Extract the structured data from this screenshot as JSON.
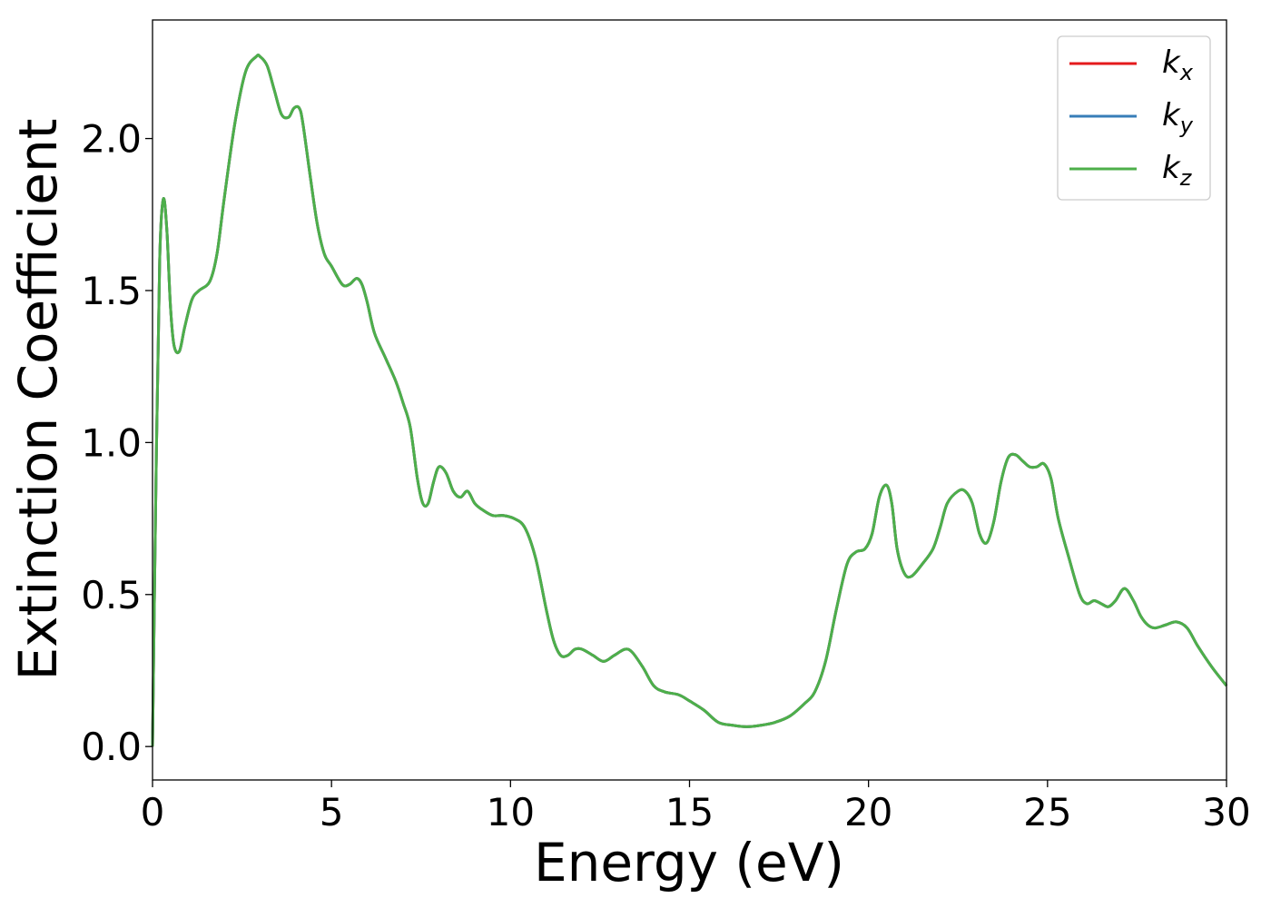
{
  "chart_data": {
    "type": "line",
    "xlabel": "Energy (eV)",
    "ylabel": "Extinction Coefficient",
    "xlim": [
      0,
      30
    ],
    "ylim": [
      -0.11,
      2.39
    ],
    "xticks": [
      0,
      5,
      10,
      15,
      20,
      25,
      30
    ],
    "xtick_labels": [
      "0",
      "5",
      "10",
      "15",
      "20",
      "25",
      "30"
    ],
    "yticks": [
      0.0,
      0.5,
      1.0,
      1.5,
      2.0
    ],
    "ytick_labels": [
      "0.0",
      "0.5",
      "1.0",
      "1.5",
      "2.0"
    ],
    "grid": false,
    "legend_position": "top-right",
    "x": [
      0.0,
      0.1,
      0.2,
      0.3,
      0.4,
      0.5,
      0.6,
      0.75,
      0.9,
      1.1,
      1.3,
      1.6,
      1.8,
      2.0,
      2.3,
      2.6,
      2.9,
      3.0,
      3.2,
      3.4,
      3.6,
      3.8,
      3.95,
      4.1,
      4.2,
      4.4,
      4.6,
      4.8,
      5.0,
      5.3,
      5.5,
      5.7,
      5.85,
      6.0,
      6.2,
      6.5,
      6.8,
      7.0,
      7.2,
      7.4,
      7.55,
      7.7,
      7.85,
      8.0,
      8.2,
      8.4,
      8.6,
      8.8,
      9.0,
      9.2,
      9.5,
      9.8,
      10.1,
      10.4,
      10.7,
      11.0,
      11.2,
      11.4,
      11.6,
      11.8,
      12.0,
      12.3,
      12.6,
      12.9,
      13.2,
      13.4,
      13.7,
      14.0,
      14.3,
      14.7,
      15.0,
      15.4,
      15.8,
      16.2,
      16.6,
      17.0,
      17.4,
      17.8,
      18.2,
      18.5,
      18.8,
      19.1,
      19.4,
      19.65,
      19.9,
      20.1,
      20.3,
      20.5,
      20.65,
      20.8,
      21.0,
      21.2,
      21.5,
      21.8,
      22.0,
      22.2,
      22.5,
      22.7,
      22.9,
      23.1,
      23.3,
      23.5,
      23.7,
      23.9,
      24.1,
      24.3,
      24.5,
      24.7,
      24.9,
      25.1,
      25.3,
      25.6,
      25.9,
      26.1,
      26.3,
      26.5,
      26.7,
      26.9,
      27.15,
      27.4,
      27.6,
      27.8,
      28.0,
      28.3,
      28.6,
      28.9,
      29.2,
      29.6,
      30.0
    ],
    "series": [
      {
        "name": "k_x",
        "label_main": "k",
        "label_sub": "x",
        "color": "#e41a1c",
        "values": [
          0.0,
          0.9,
          1.6,
          1.8,
          1.7,
          1.45,
          1.32,
          1.3,
          1.38,
          1.47,
          1.5,
          1.53,
          1.62,
          1.8,
          2.05,
          2.22,
          2.27,
          2.27,
          2.24,
          2.16,
          2.08,
          2.07,
          2.1,
          2.1,
          2.05,
          1.88,
          1.72,
          1.62,
          1.58,
          1.52,
          1.52,
          1.54,
          1.52,
          1.46,
          1.36,
          1.28,
          1.2,
          1.13,
          1.05,
          0.88,
          0.8,
          0.8,
          0.87,
          0.92,
          0.9,
          0.84,
          0.82,
          0.84,
          0.8,
          0.78,
          0.76,
          0.76,
          0.75,
          0.72,
          0.62,
          0.45,
          0.35,
          0.3,
          0.3,
          0.32,
          0.32,
          0.3,
          0.28,
          0.3,
          0.32,
          0.31,
          0.26,
          0.2,
          0.18,
          0.17,
          0.15,
          0.12,
          0.08,
          0.07,
          0.065,
          0.07,
          0.08,
          0.1,
          0.14,
          0.18,
          0.28,
          0.45,
          0.6,
          0.64,
          0.65,
          0.7,
          0.82,
          0.86,
          0.8,
          0.65,
          0.57,
          0.56,
          0.6,
          0.65,
          0.72,
          0.8,
          0.84,
          0.84,
          0.8,
          0.7,
          0.67,
          0.74,
          0.87,
          0.95,
          0.96,
          0.94,
          0.92,
          0.92,
          0.93,
          0.88,
          0.75,
          0.62,
          0.5,
          0.47,
          0.48,
          0.47,
          0.46,
          0.48,
          0.52,
          0.48,
          0.43,
          0.4,
          0.39,
          0.4,
          0.41,
          0.39,
          0.33,
          0.26,
          0.2
        ]
      },
      {
        "name": "k_y",
        "label_main": "k",
        "label_sub": "y",
        "color": "#377eb8",
        "values": [
          0.0,
          0.9,
          1.6,
          1.8,
          1.7,
          1.45,
          1.32,
          1.3,
          1.38,
          1.47,
          1.5,
          1.53,
          1.62,
          1.8,
          2.05,
          2.22,
          2.27,
          2.27,
          2.24,
          2.16,
          2.08,
          2.07,
          2.1,
          2.1,
          2.05,
          1.88,
          1.72,
          1.62,
          1.58,
          1.52,
          1.52,
          1.54,
          1.52,
          1.46,
          1.36,
          1.28,
          1.2,
          1.13,
          1.05,
          0.88,
          0.8,
          0.8,
          0.87,
          0.92,
          0.9,
          0.84,
          0.82,
          0.84,
          0.8,
          0.78,
          0.76,
          0.76,
          0.75,
          0.72,
          0.62,
          0.45,
          0.35,
          0.3,
          0.3,
          0.32,
          0.32,
          0.3,
          0.28,
          0.3,
          0.32,
          0.31,
          0.26,
          0.2,
          0.18,
          0.17,
          0.15,
          0.12,
          0.08,
          0.07,
          0.065,
          0.07,
          0.08,
          0.1,
          0.14,
          0.18,
          0.28,
          0.45,
          0.6,
          0.64,
          0.65,
          0.7,
          0.82,
          0.86,
          0.8,
          0.65,
          0.57,
          0.56,
          0.6,
          0.65,
          0.72,
          0.8,
          0.84,
          0.84,
          0.8,
          0.7,
          0.67,
          0.74,
          0.87,
          0.95,
          0.96,
          0.94,
          0.92,
          0.92,
          0.93,
          0.88,
          0.75,
          0.62,
          0.5,
          0.47,
          0.48,
          0.47,
          0.46,
          0.48,
          0.52,
          0.48,
          0.43,
          0.4,
          0.39,
          0.4,
          0.41,
          0.39,
          0.33,
          0.26,
          0.2
        ]
      },
      {
        "name": "k_z",
        "label_main": "k",
        "label_sub": "z",
        "color": "#4daf4a",
        "values": [
          0.0,
          0.9,
          1.6,
          1.8,
          1.7,
          1.45,
          1.32,
          1.3,
          1.38,
          1.47,
          1.5,
          1.53,
          1.62,
          1.8,
          2.05,
          2.22,
          2.27,
          2.27,
          2.24,
          2.16,
          2.08,
          2.07,
          2.1,
          2.1,
          2.05,
          1.88,
          1.72,
          1.62,
          1.58,
          1.52,
          1.52,
          1.54,
          1.52,
          1.46,
          1.36,
          1.28,
          1.2,
          1.13,
          1.05,
          0.88,
          0.8,
          0.8,
          0.87,
          0.92,
          0.9,
          0.84,
          0.82,
          0.84,
          0.8,
          0.78,
          0.76,
          0.76,
          0.75,
          0.72,
          0.62,
          0.45,
          0.35,
          0.3,
          0.3,
          0.32,
          0.32,
          0.3,
          0.28,
          0.3,
          0.32,
          0.31,
          0.26,
          0.2,
          0.18,
          0.17,
          0.15,
          0.12,
          0.08,
          0.07,
          0.065,
          0.07,
          0.08,
          0.1,
          0.14,
          0.18,
          0.28,
          0.45,
          0.6,
          0.64,
          0.65,
          0.7,
          0.82,
          0.86,
          0.8,
          0.65,
          0.57,
          0.56,
          0.6,
          0.65,
          0.72,
          0.8,
          0.84,
          0.84,
          0.8,
          0.7,
          0.67,
          0.74,
          0.87,
          0.95,
          0.96,
          0.94,
          0.92,
          0.92,
          0.93,
          0.88,
          0.75,
          0.62,
          0.5,
          0.47,
          0.48,
          0.47,
          0.46,
          0.48,
          0.52,
          0.48,
          0.43,
          0.4,
          0.39,
          0.4,
          0.41,
          0.39,
          0.33,
          0.26,
          0.2
        ]
      }
    ]
  }
}
